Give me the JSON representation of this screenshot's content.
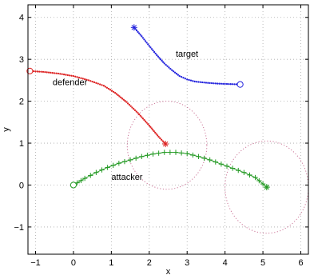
{
  "chart_data": {
    "type": "line",
    "xlabel": "x",
    "ylabel": "y",
    "xlim": [
      -1.2,
      6.2
    ],
    "ylim": [
      -1.65,
      4.3
    ],
    "xticks": [
      -1,
      0,
      1,
      2,
      3,
      4,
      5,
      6
    ],
    "yticks": [
      -1,
      0,
      1,
      2,
      3,
      4
    ],
    "xtick_labels": [
      "−1",
      "0",
      "1",
      "2",
      "3",
      "4",
      "5",
      "6"
    ],
    "ytick_labels": [
      "−1",
      "0",
      "1",
      "2",
      "3",
      "4"
    ],
    "grid": true,
    "series": [
      {
        "color": "#2222dd",
        "marker": "dot",
        "start_marker": "asterisk",
        "end_marker": "circle",
        "points": [
          [
            1.6,
            3.76
          ],
          [
            1.8,
            3.55
          ],
          [
            2.0,
            3.32
          ],
          [
            2.2,
            3.1
          ],
          [
            2.4,
            2.9
          ],
          [
            2.6,
            2.74
          ],
          [
            2.8,
            2.6
          ],
          [
            3.0,
            2.52
          ],
          [
            3.2,
            2.47
          ],
          [
            3.5,
            2.44
          ],
          [
            3.8,
            2.42
          ],
          [
            4.1,
            2.41
          ],
          [
            4.4,
            2.4
          ]
        ]
      },
      {
        "color": "#dd2222",
        "marker": "dot",
        "start_marker": "circle",
        "end_marker": "asterisk",
        "points": [
          [
            -1.15,
            2.72
          ],
          [
            -0.8,
            2.7
          ],
          [
            -0.4,
            2.66
          ],
          [
            0.0,
            2.6
          ],
          [
            0.4,
            2.5
          ],
          [
            0.8,
            2.37
          ],
          [
            1.1,
            2.2
          ],
          [
            1.4,
            1.98
          ],
          [
            1.7,
            1.72
          ],
          [
            2.0,
            1.42
          ],
          [
            2.25,
            1.15
          ],
          [
            2.43,
            0.98
          ]
        ]
      },
      {
        "color": "#229922",
        "marker": "plus",
        "start_marker": "circle",
        "end_marker": "asterisk",
        "points": [
          [
            0.0,
            0.0
          ],
          [
            0.3,
            0.16
          ],
          [
            0.6,
            0.3
          ],
          [
            0.9,
            0.42
          ],
          [
            1.2,
            0.52
          ],
          [
            1.5,
            0.6
          ],
          [
            1.8,
            0.68
          ],
          [
            2.1,
            0.74
          ],
          [
            2.4,
            0.78
          ],
          [
            2.7,
            0.78
          ],
          [
            3.0,
            0.75
          ],
          [
            3.3,
            0.68
          ],
          [
            3.6,
            0.6
          ],
          [
            3.9,
            0.5
          ],
          [
            4.2,
            0.4
          ],
          [
            4.5,
            0.3
          ],
          [
            4.8,
            0.18
          ],
          [
            5.1,
            -0.05
          ]
        ]
      }
    ],
    "circles": [
      {
        "cx": 2.47,
        "cy": 0.95,
        "r": 1.05,
        "color": "#cc7799"
      },
      {
        "cx": 5.1,
        "cy": -0.05,
        "r": 1.1,
        "color": "#cc7799"
      }
    ],
    "annotations": [
      {
        "text": "target",
        "x": 2.7,
        "y": 3.06
      },
      {
        "text": "defender",
        "x": -0.55,
        "y": 2.38
      },
      {
        "text": "attacker",
        "x": 1.0,
        "y": 0.12
      }
    ]
  }
}
